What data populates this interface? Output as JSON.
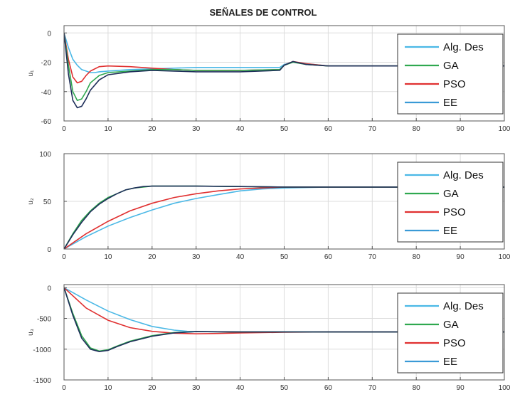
{
  "chart_data": {
    "title": "SEÑALES DE CONTROL",
    "colors": {
      "Alg. Des": "#4ab8e6",
      "GA": "#2fa84f",
      "PSO": "#e03030",
      "EE": "#3a9ad6",
      "dark": "#1f2f5a"
    },
    "panels": [
      {
        "type": "line",
        "ylabel": "u₁",
        "xlim": [
          0,
          100
        ],
        "ylim": [
          -60,
          5
        ],
        "xticks": [
          0,
          10,
          20,
          30,
          40,
          50,
          60,
          70,
          80,
          90,
          100
        ],
        "yticks": [
          0,
          -20,
          -40,
          -60
        ],
        "grid": true,
        "legend_position": "right",
        "legend": [
          "Alg. Des",
          "GA",
          "PSO",
          "EE"
        ],
        "series": [
          {
            "name": "Alg. Des",
            "x": [
              0,
              1,
              2,
              3,
              4,
              5,
              6,
              7,
              8,
              10,
              15,
              20,
              25,
              30,
              40,
              49,
              50,
              52,
              55,
              60,
              70,
              80,
              90,
              100
            ],
            "y": [
              0,
              -10,
              -18,
              -22,
              -25,
              -26,
              -27,
              -27,
              -26.5,
              -26,
              -25,
              -24.5,
              -24,
              -23.5,
              -23.5,
              -23.5,
              -21.5,
              -20,
              -21,
              -22.5,
              -22.5,
              -22.5,
              -22.5,
              -22.5
            ]
          },
          {
            "name": "GA",
            "x": [
              0,
              1,
              2,
              3,
              4,
              5,
              6,
              8,
              10,
              15,
              20,
              25,
              30,
              40,
              49,
              50,
              52,
              55,
              60,
              70,
              80,
              90,
              100
            ],
            "y": [
              0,
              -22,
              -40,
              -46,
              -45,
              -40,
              -34,
              -29,
              -27,
              -26,
              -25,
              -25,
              -25.5,
              -25.5,
              -25,
              -22,
              -20,
              -21.5,
              -22.5,
              -22.5,
              -22.5,
              -22.5,
              -22.5
            ]
          },
          {
            "name": "PSO",
            "x": [
              0,
              1,
              2,
              3,
              4,
              5,
              6,
              8,
              10,
              15,
              20,
              25,
              30,
              40,
              49,
              50,
              52,
              55,
              60,
              70,
              80,
              90,
              100
            ],
            "y": [
              0,
              -18,
              -30,
              -34,
              -33,
              -29,
              -26,
              -23,
              -22.5,
              -23,
              -24,
              -25,
              -25.5,
              -25.5,
              -25,
              -22,
              -19.5,
              -21,
              -22.5,
              -22.5,
              -22.5,
              -22.5,
              -22.5
            ]
          },
          {
            "name": "EE",
            "x": [
              0,
              1,
              2,
              3,
              4,
              5,
              6,
              8,
              10,
              15,
              20,
              25,
              30,
              40,
              49,
              50,
              52,
              55,
              60,
              70,
              80,
              90,
              100
            ],
            "y": [
              0,
              -28,
              -46,
              -51,
              -50,
              -45,
              -39,
              -32,
              -28.5,
              -26.5,
              -25.5,
              -26,
              -26.5,
              -26.5,
              -25.5,
              -22,
              -19.5,
              -21.5,
              -22.5,
              -22.5,
              -22.5,
              -22.5,
              -22.5
            ]
          }
        ]
      },
      {
        "type": "line",
        "ylabel": "u₂",
        "xlim": [
          0,
          100
        ],
        "ylim": [
          0,
          100
        ],
        "xticks": [
          0,
          10,
          20,
          30,
          40,
          50,
          60,
          70,
          80,
          90,
          100
        ],
        "yticks": [
          100,
          50,
          0
        ],
        "grid": true,
        "legend_position": "right",
        "legend": [
          "Alg. Des",
          "GA",
          "PSO",
          "EE"
        ],
        "series": [
          {
            "name": "Alg. Des",
            "x": [
              0,
              5,
              10,
              15,
              20,
              25,
              30,
              35,
              40,
              45,
              50,
              60,
              70,
              80,
              90,
              100
            ],
            "y": [
              0,
              13,
              24,
              33,
              41,
              48,
              53,
              57,
              61,
              63,
              64,
              65,
              65,
              65,
              65,
              65
            ]
          },
          {
            "name": "GA",
            "x": [
              0,
              2,
              4,
              6,
              8,
              10,
              12,
              14,
              16,
              18,
              20,
              25,
              30,
              40,
              50,
              60,
              70,
              80,
              90,
              100
            ],
            "y": [
              0,
              16,
              30,
              40,
              48,
              54,
              58,
              62,
              64,
              65,
              66,
              66,
              66,
              65.5,
              65,
              65,
              65,
              65,
              65,
              65
            ]
          },
          {
            "name": "PSO",
            "x": [
              0,
              5,
              10,
              15,
              20,
              25,
              30,
              35,
              40,
              45,
              50,
              60,
              70,
              80,
              90,
              100
            ],
            "y": [
              0,
              16,
              29,
              40,
              48,
              54,
              58,
              61,
              63,
              64,
              65,
              65,
              65,
              65,
              65,
              65
            ]
          },
          {
            "name": "EE",
            "x": [
              0,
              2,
              4,
              6,
              8,
              10,
              12,
              14,
              16,
              18,
              20,
              25,
              30,
              40,
              50,
              60,
              70,
              80,
              90,
              100
            ],
            "y": [
              0,
              15,
              28,
              39,
              47,
              53,
              58,
              62,
              64,
              65.5,
              66,
              66,
              66,
              65.5,
              65,
              65,
              65,
              65,
              65,
              65
            ]
          }
        ]
      },
      {
        "type": "line",
        "ylabel": "u₃",
        "xlim": [
          0,
          100
        ],
        "ylim": [
          -1500,
          50
        ],
        "xticks": [
          0,
          10,
          20,
          30,
          40,
          50,
          60,
          70,
          80,
          90,
          100
        ],
        "yticks": [
          0,
          -500,
          -1000,
          -1500
        ],
        "grid": true,
        "legend_position": "right",
        "legend": [
          "Alg. Des",
          "GA",
          "PSO",
          "EE"
        ],
        "series": [
          {
            "name": "Alg. Des",
            "x": [
              0,
              5,
              10,
              15,
              20,
              25,
              28,
              30,
              40,
              50,
              60,
              70,
              80,
              90,
              100
            ],
            "y": [
              0,
              -200,
              -380,
              -520,
              -630,
              -690,
              -710,
              -715,
              -720,
              -720,
              -720,
              -720,
              -720,
              -720,
              -720
            ]
          },
          {
            "name": "GA",
            "x": [
              0,
              2,
              4,
              6,
              8,
              10,
              12,
              15,
              20,
              25,
              30,
              40,
              50,
              60,
              70,
              80,
              90,
              100
            ],
            "y": [
              0,
              -420,
              -780,
              -980,
              -1030,
              -1010,
              -950,
              -870,
              -780,
              -730,
              -715,
              -720,
              -720,
              -720,
              -720,
              -720,
              -720,
              -720
            ]
          },
          {
            "name": "PSO",
            "x": [
              0,
              5,
              10,
              15,
              20,
              25,
              30,
              35,
              40,
              50,
              60,
              70,
              80,
              90,
              100
            ],
            "y": [
              0,
              -330,
              -530,
              -650,
              -710,
              -740,
              -750,
              -745,
              -735,
              -725,
              -720,
              -720,
              -720,
              -720,
              -720
            ]
          },
          {
            "name": "EE",
            "x": [
              0,
              2,
              4,
              6,
              8,
              10,
              12,
              15,
              20,
              25,
              30,
              40,
              50,
              60,
              70,
              80,
              90,
              100
            ],
            "y": [
              0,
              -450,
              -820,
              -1000,
              -1040,
              -1020,
              -960,
              -880,
              -790,
              -735,
              -715,
              -720,
              -720,
              -720,
              -720,
              -720,
              -720,
              -720
            ]
          }
        ]
      }
    ]
  }
}
